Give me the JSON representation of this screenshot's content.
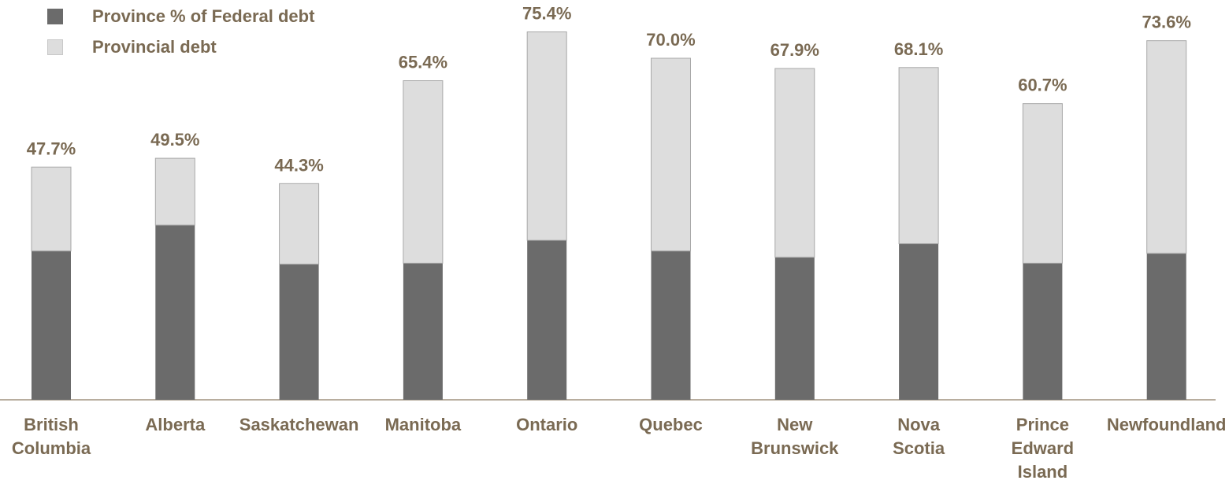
{
  "chart_data": {
    "type": "bar",
    "stacked": true,
    "categories": [
      [
        "British",
        "Columbia"
      ],
      [
        "Alberta"
      ],
      [
        "Saskatchewan"
      ],
      [
        "Manitoba"
      ],
      [
        "Ontario"
      ],
      [
        "Quebec"
      ],
      [
        "New",
        "Brunswick"
      ],
      [
        "Nova",
        "Scotia"
      ],
      [
        "Prince",
        "Edward",
        "Island"
      ],
      [
        "Newfoundland"
      ]
    ],
    "series": [
      {
        "name": "Province % of Federal debt",
        "color": "#6b6b6b",
        "values": [
          30.5,
          35.8,
          27.8,
          28.0,
          32.7,
          30.5,
          29.2,
          32.0,
          28.0,
          30.0
        ]
      },
      {
        "name": "Provincial debt",
        "color": "#dddddd",
        "values": [
          17.2,
          13.7,
          16.5,
          37.4,
          42.7,
          39.5,
          38.7,
          36.1,
          32.7,
          43.6
        ]
      }
    ],
    "data_labels": [
      "47.7%",
      "49.5%",
      "44.3%",
      "65.4%",
      "75.4%",
      "70.0%",
      "67.9%",
      "68.1%",
      "60.7%",
      "73.6%"
    ],
    "totals": [
      47.7,
      49.5,
      44.3,
      65.4,
      75.4,
      70.0,
      67.9,
      68.1,
      60.7,
      73.6
    ],
    "ylim": [
      0,
      80
    ],
    "grid": false,
    "legend_position": "top-left",
    "title": "",
    "xlabel": "",
    "ylabel": ""
  }
}
